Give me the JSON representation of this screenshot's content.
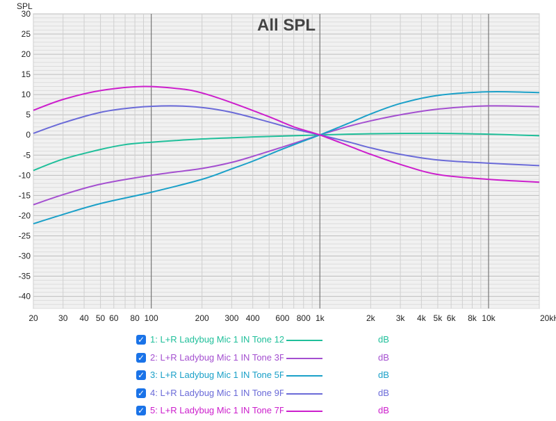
{
  "chart_data": {
    "type": "line",
    "title": "All SPL",
    "ylabel": "SPL",
    "xlabel": "",
    "xscale": "log",
    "xlim": [
      20,
      20000
    ],
    "ylim": [
      -43,
      30
    ],
    "grid": true,
    "y_ticks": [
      30,
      25,
      20,
      15,
      10,
      5,
      0,
      -5,
      -10,
      -15,
      -20,
      -25,
      -30,
      -35,
      -40
    ],
    "x_ticks": [
      {
        "v": 20,
        "label": "20"
      },
      {
        "v": 30,
        "label": "30"
      },
      {
        "v": 40,
        "label": "40"
      },
      {
        "v": 50,
        "label": "50"
      },
      {
        "v": 60,
        "label": "60"
      },
      {
        "v": 80,
        "label": "80"
      },
      {
        "v": 100,
        "label": "100"
      },
      {
        "v": 200,
        "label": "200"
      },
      {
        "v": 300,
        "label": "300"
      },
      {
        "v": 400,
        "label": "400"
      },
      {
        "v": 600,
        "label": "600"
      },
      {
        "v": 800,
        "label": "800"
      },
      {
        "v": 1000,
        "label": "1k"
      },
      {
        "v": 2000,
        "label": "2k"
      },
      {
        "v": 3000,
        "label": "3k"
      },
      {
        "v": 4000,
        "label": "4k"
      },
      {
        "v": 5000,
        "label": "5k"
      },
      {
        "v": 6000,
        "label": "6k"
      },
      {
        "v": 8000,
        "label": "8k"
      },
      {
        "v": 10000,
        "label": "10k"
      },
      {
        "v": 20000,
        "label": "20kHz"
      }
    ],
    "series": [
      {
        "name": "1: L+R Ladybug Mic 1 IN Tone 12",
        "unit": "dB",
        "color": "#1fbf9a",
        "x": [
          20,
          30,
          50,
          70,
          100,
          200,
          400,
          700,
          1000,
          2000,
          5000,
          10000,
          20000
        ],
        "y": [
          -8.8,
          -6.0,
          -3.6,
          -2.4,
          -1.8,
          -1.0,
          -0.5,
          -0.2,
          0.0,
          0.3,
          0.4,
          0.2,
          -0.2
        ]
      },
      {
        "name": "2: L+R Ladybug Mic 1 IN Tone 3F",
        "unit": "dB",
        "color": "#a44fd0",
        "x": [
          20,
          30,
          50,
          100,
          200,
          300,
          400,
          600,
          800,
          1000,
          1500,
          2000,
          3000,
          5000,
          10000,
          20000
        ],
        "y": [
          -17.3,
          -14.8,
          -12.2,
          -10.0,
          -8.3,
          -6.8,
          -5.3,
          -3.0,
          -1.3,
          0.0,
          2.2,
          3.5,
          5.0,
          6.4,
          7.2,
          7.0
        ]
      },
      {
        "name": "3: L+R Ladybug Mic 1 IN Tone 5F",
        "unit": "dB",
        "color": "#1aa0c8",
        "x": [
          20,
          30,
          50,
          100,
          200,
          300,
          400,
          600,
          800,
          1000,
          1500,
          2000,
          3000,
          5000,
          10000,
          20000
        ],
        "y": [
          -22.0,
          -19.7,
          -17.0,
          -14.2,
          -11.0,
          -8.4,
          -6.5,
          -3.5,
          -1.5,
          0.0,
          3.0,
          5.2,
          7.8,
          9.8,
          10.7,
          10.5
        ]
      },
      {
        "name": "4: L+R Ladybug Mic 1 IN Tone 9F",
        "unit": "dB",
        "color": "#6a6ad8",
        "x": [
          20,
          30,
          50,
          80,
          130,
          200,
          300,
          500,
          700,
          1000,
          1500,
          2000,
          3000,
          5000,
          10000,
          20000
        ],
        "y": [
          0.4,
          3.0,
          5.6,
          6.8,
          7.2,
          6.8,
          5.6,
          3.2,
          1.5,
          0.0,
          -1.8,
          -3.2,
          -4.8,
          -6.2,
          -7.0,
          -7.6
        ]
      },
      {
        "name": "5: L+R Ladybug Mic 1 IN Tone 7F",
        "unit": "dB",
        "color": "#cc1ecc",
        "x": [
          20,
          30,
          50,
          90,
          150,
          200,
          300,
          500,
          700,
          1000,
          1500,
          2000,
          3000,
          5000,
          10000,
          20000
        ],
        "y": [
          6.1,
          8.8,
          11.0,
          12.0,
          11.4,
          10.4,
          8.0,
          4.5,
          2.0,
          0.0,
          -2.8,
          -4.8,
          -7.3,
          -9.8,
          -11.0,
          -11.7
        ]
      }
    ]
  }
}
